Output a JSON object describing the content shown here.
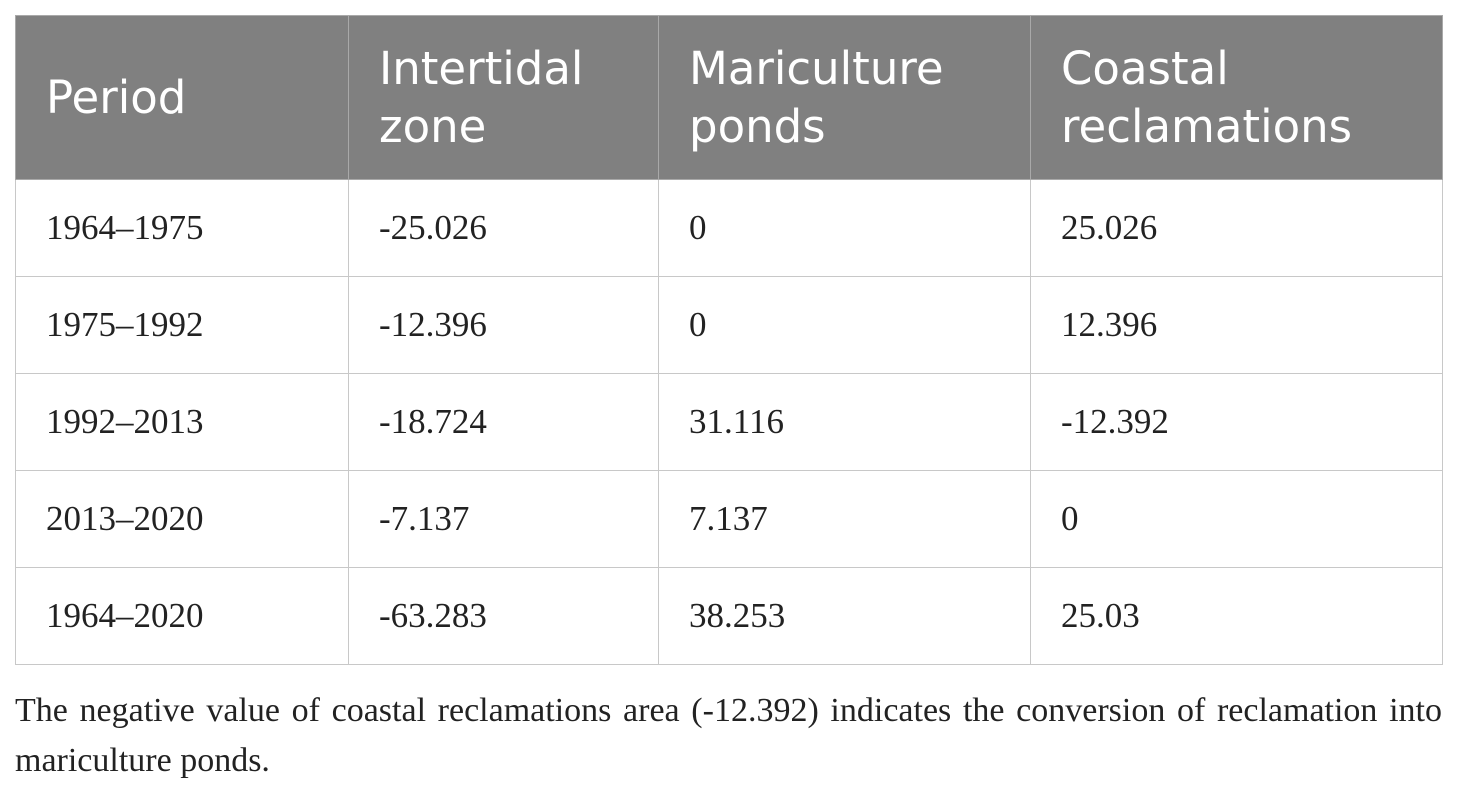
{
  "table": {
    "header": [
      "Period",
      "Intertidal zone",
      "Mariculture ponds",
      "Coastal reclamations"
    ],
    "rows": [
      [
        "1964–1975",
        "-25.026",
        "0",
        "25.026"
      ],
      [
        "1975–1992",
        "-12.396",
        "0",
        "12.396"
      ],
      [
        "1992–2013",
        "-18.724",
        "31.116",
        "-12.392"
      ],
      [
        "2013–2020",
        "-7.137",
        "7.137",
        "0"
      ],
      [
        "1964–2020",
        "-63.283",
        "38.253",
        "25.03"
      ]
    ]
  },
  "footnote": "The negative value of coastal reclamations area (-12.392) indicates the conversion of reclamation into mariculture ponds."
}
